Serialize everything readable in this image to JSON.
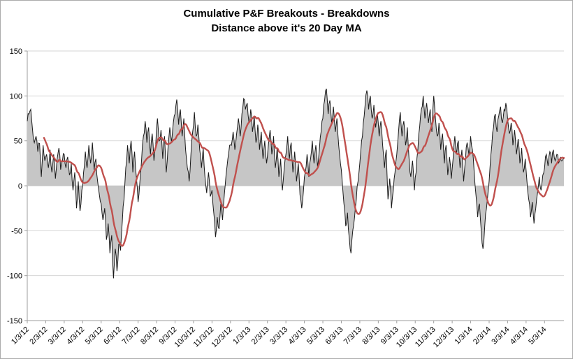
{
  "title": {
    "line1": "Cumulative P&F Breakouts - Breakdowns",
    "line2": "Distance above it's 20 Day MA"
  },
  "colors": {
    "area_fill": "#c6c6c6",
    "area_stroke": "#1a1a1a",
    "ma_line": "#c0504d",
    "gridline": "#d6d6d6",
    "axis_line": "#9e9e9e",
    "label_text": "#000000"
  },
  "chart_data": {
    "type": "area",
    "title": "Cumulative P&F Breakouts - Breakdowns",
    "subtitle": "Distance above it's 20 Day MA",
    "xlabel": "",
    "ylabel": "",
    "ylim": [
      -150,
      150
    ],
    "y_ticks": [
      150,
      100,
      50,
      0,
      -50,
      -100,
      -150
    ],
    "grid": "horizontal",
    "legend": "none",
    "total_days": 610,
    "noise_amplitude": 5,
    "x_tick_days": [
      0,
      21,
      42,
      63,
      84,
      105,
      126,
      147,
      168,
      189,
      210,
      231,
      252,
      273,
      294,
      315,
      336,
      357,
      378,
      399,
      420,
      441,
      462,
      483,
      504,
      525,
      546,
      567,
      588
    ],
    "x_tick_labels": [
      "1/3/12",
      "2/3/12",
      "3/3/12",
      "4/3/12",
      "5/3/12",
      "6/3/12",
      "7/3/12",
      "8/3/12",
      "9/3/12",
      "10/3/12",
      "11/3/12",
      "12/3/12",
      "1/3/13",
      "2/3/13",
      "3/3/13",
      "4/3/13",
      "5/3/13",
      "6/3/13",
      "7/3/13",
      "8/3/13",
      "9/3/13",
      "10/3/13",
      "11/3/13",
      "12/3/13",
      "1/3/14",
      "2/3/14",
      "3/3/14",
      "4/3/14",
      "5/3/14"
    ],
    "series": [
      {
        "name": "Cumulative P&F Breakouts - Breakdowns distance above 20 Day MA",
        "type": "area",
        "baseline": 0,
        "anchors": [
          [
            0,
            72
          ],
          [
            2,
            80
          ],
          [
            4,
            85
          ],
          [
            6,
            62
          ],
          [
            8,
            48
          ],
          [
            10,
            55
          ],
          [
            12,
            38
          ],
          [
            14,
            47
          ],
          [
            16,
            10
          ],
          [
            18,
            45
          ],
          [
            20,
            28
          ],
          [
            22,
            35
          ],
          [
            24,
            20
          ],
          [
            26,
            40
          ],
          [
            28,
            15
          ],
          [
            30,
            35
          ],
          [
            32,
            8
          ],
          [
            34,
            30
          ],
          [
            36,
            42
          ],
          [
            38,
            18
          ],
          [
            40,
            28
          ],
          [
            42,
            35
          ],
          [
            44,
            20
          ],
          [
            46,
            32
          ],
          [
            48,
            12
          ],
          [
            50,
            25
          ],
          [
            52,
            -5
          ],
          [
            54,
            15
          ],
          [
            56,
            -25
          ],
          [
            58,
            5
          ],
          [
            60,
            -28
          ],
          [
            62,
            -5
          ],
          [
            64,
            15
          ],
          [
            66,
            38
          ],
          [
            68,
            20
          ],
          [
            70,
            45
          ],
          [
            72,
            25
          ],
          [
            74,
            48
          ],
          [
            76,
            18
          ],
          [
            78,
            30
          ],
          [
            80,
            5
          ],
          [
            82,
            -10
          ],
          [
            84,
            -20
          ],
          [
            86,
            -38
          ],
          [
            88,
            -25
          ],
          [
            90,
            -60
          ],
          [
            92,
            -42
          ],
          [
            94,
            -75
          ],
          [
            96,
            -55
          ],
          [
            98,
            -103
          ],
          [
            100,
            -70
          ],
          [
            102,
            -95
          ],
          [
            104,
            -65
          ],
          [
            106,
            -72
          ],
          [
            108,
            -40
          ],
          [
            110,
            -15
          ],
          [
            112,
            20
          ],
          [
            114,
            45
          ],
          [
            116,
            25
          ],
          [
            118,
            50
          ],
          [
            120,
            15
          ],
          [
            122,
            38
          ],
          [
            124,
            10
          ],
          [
            126,
            -18
          ],
          [
            128,
            5
          ],
          [
            130,
            30
          ],
          [
            132,
            55
          ],
          [
            134,
            72
          ],
          [
            136,
            48
          ],
          [
            138,
            65
          ],
          [
            140,
            35
          ],
          [
            142,
            58
          ],
          [
            144,
            28
          ],
          [
            146,
            45
          ],
          [
            148,
            75
          ],
          [
            150,
            50
          ],
          [
            152,
            62
          ],
          [
            154,
            30
          ],
          [
            156,
            55
          ],
          [
            158,
            15
          ],
          [
            160,
            42
          ],
          [
            162,
            65
          ],
          [
            164,
            48
          ],
          [
            166,
            70
          ],
          [
            168,
            80
          ],
          [
            170,
            96
          ],
          [
            172,
            68
          ],
          [
            174,
            85
          ],
          [
            176,
            55
          ],
          [
            178,
            75
          ],
          [
            180,
            40
          ],
          [
            182,
            20
          ],
          [
            184,
            5
          ],
          [
            186,
            35
          ],
          [
            188,
            60
          ],
          [
            190,
            82
          ],
          [
            192,
            55
          ],
          [
            194,
            68
          ],
          [
            196,
            40
          ],
          [
            198,
            20
          ],
          [
            200,
            42
          ],
          [
            202,
            10
          ],
          [
            204,
            -8
          ],
          [
            206,
            15
          ],
          [
            208,
            -12
          ],
          [
            210,
            -5
          ],
          [
            212,
            -30
          ],
          [
            214,
            -57
          ],
          [
            216,
            -35
          ],
          [
            218,
            -48
          ],
          [
            220,
            -20
          ],
          [
            222,
            -38
          ],
          [
            224,
            -10
          ],
          [
            226,
            12
          ],
          [
            228,
            30
          ],
          [
            230,
            45
          ],
          [
            232,
            45
          ],
          [
            234,
            60
          ],
          [
            236,
            40
          ],
          [
            238,
            58
          ],
          [
            240,
            75
          ],
          [
            242,
            55
          ],
          [
            244,
            80
          ],
          [
            246,
            97
          ],
          [
            248,
            85
          ],
          [
            250,
            92
          ],
          [
            252,
            70
          ],
          [
            254,
            85
          ],
          [
            256,
            60
          ],
          [
            258,
            78
          ],
          [
            260,
            48
          ],
          [
            262,
            68
          ],
          [
            264,
            40
          ],
          [
            266,
            60
          ],
          [
            268,
            30
          ],
          [
            270,
            50
          ],
          [
            272,
            25
          ],
          [
            274,
            45
          ],
          [
            276,
            62
          ],
          [
            278,
            35
          ],
          [
            280,
            55
          ],
          [
            282,
            20
          ],
          [
            284,
            42
          ],
          [
            286,
            10
          ],
          [
            288,
            30
          ],
          [
            290,
            -5
          ],
          [
            292,
            18
          ],
          [
            294,
            35
          ],
          [
            296,
            55
          ],
          [
            298,
            30
          ],
          [
            300,
            48
          ],
          [
            302,
            15
          ],
          [
            304,
            38
          ],
          [
            306,
            5
          ],
          [
            308,
            25
          ],
          [
            310,
            -10
          ],
          [
            312,
            -25
          ],
          [
            314,
            -5
          ],
          [
            316,
            15
          ],
          [
            318,
            35
          ],
          [
            320,
            10
          ],
          [
            322,
            30
          ],
          [
            324,
            50
          ],
          [
            326,
            25
          ],
          [
            328,
            45
          ],
          [
            330,
            20
          ],
          [
            332,
            40
          ],
          [
            334,
            60
          ],
          [
            336,
            75
          ],
          [
            338,
            95
          ],
          [
            340,
            108
          ],
          [
            342,
            80
          ],
          [
            344,
            95
          ],
          [
            346,
            70
          ],
          [
            348,
            88
          ],
          [
            350,
            60
          ],
          [
            352,
            75
          ],
          [
            354,
            45
          ],
          [
            356,
            25
          ],
          [
            358,
            5
          ],
          [
            360,
            -20
          ],
          [
            362,
            -45
          ],
          [
            364,
            -30
          ],
          [
            366,
            -58
          ],
          [
            368,
            -75
          ],
          [
            370,
            -50
          ],
          [
            372,
            -35
          ],
          [
            374,
            -15
          ],
          [
            376,
            5
          ],
          [
            378,
            25
          ],
          [
            380,
            50
          ],
          [
            382,
            70
          ],
          [
            384,
            90
          ],
          [
            386,
            106
          ],
          [
            388,
            85
          ],
          [
            390,
            100
          ],
          [
            392,
            75
          ],
          [
            394,
            90
          ],
          [
            396,
            65
          ],
          [
            398,
            80
          ],
          [
            400,
            55
          ],
          [
            402,
            72
          ],
          [
            404,
            45
          ],
          [
            406,
            20
          ],
          [
            408,
            40
          ],
          [
            410,
            -15
          ],
          [
            412,
            8
          ],
          [
            414,
            -25
          ],
          [
            416,
            -5
          ],
          [
            418,
            15
          ],
          [
            420,
            35
          ],
          [
            422,
            60
          ],
          [
            424,
            82
          ],
          [
            426,
            55
          ],
          [
            428,
            72
          ],
          [
            430,
            45
          ],
          [
            432,
            65
          ],
          [
            434,
            30
          ],
          [
            436,
            10
          ],
          [
            438,
            28
          ],
          [
            440,
            -5
          ],
          [
            442,
            15
          ],
          [
            444,
            40
          ],
          [
            446,
            65
          ],
          [
            448,
            85
          ],
          [
            450,
            100
          ],
          [
            452,
            75
          ],
          [
            454,
            92
          ],
          [
            456,
            70
          ],
          [
            458,
            85
          ],
          [
            460,
            60
          ],
          [
            462,
            100
          ],
          [
            464,
            75
          ],
          [
            466,
            55
          ],
          [
            468,
            70
          ],
          [
            470,
            40
          ],
          [
            472,
            58
          ],
          [
            474,
            25
          ],
          [
            476,
            45
          ],
          [
            478,
            12
          ],
          [
            480,
            32
          ],
          [
            482,
            8
          ],
          [
            484,
            30
          ],
          [
            486,
            55
          ],
          [
            488,
            35
          ],
          [
            490,
            50
          ],
          [
            492,
            20
          ],
          [
            494,
            40
          ],
          [
            496,
            5
          ],
          [
            498,
            28
          ],
          [
            500,
            48
          ],
          [
            502,
            35
          ],
          [
            504,
            55
          ],
          [
            506,
            40
          ],
          [
            508,
            15
          ],
          [
            510,
            -10
          ],
          [
            512,
            -35
          ],
          [
            514,
            -20
          ],
          [
            516,
            -50
          ],
          [
            518,
            -70
          ],
          [
            520,
            -45
          ],
          [
            522,
            -25
          ],
          [
            524,
            -5
          ],
          [
            526,
            20
          ],
          [
            528,
            45
          ],
          [
            530,
            65
          ],
          [
            532,
            80
          ],
          [
            534,
            60
          ],
          [
            536,
            78
          ],
          [
            538,
            88
          ],
          [
            540,
            70
          ],
          [
            542,
            85
          ],
          [
            544,
            92
          ],
          [
            546,
            75
          ],
          [
            548,
            58
          ],
          [
            550,
            70
          ],
          [
            552,
            45
          ],
          [
            554,
            62
          ],
          [
            556,
            35
          ],
          [
            558,
            52
          ],
          [
            560,
            25
          ],
          [
            562,
            42
          ],
          [
            564,
            15
          ],
          [
            566,
            30
          ],
          [
            568,
            5
          ],
          [
            570,
            -15
          ],
          [
            572,
            -35
          ],
          [
            574,
            -18
          ],
          [
            576,
            -42
          ],
          [
            578,
            -25
          ],
          [
            580,
            -8
          ],
          [
            582,
            10
          ],
          [
            584,
            -5
          ],
          [
            586,
            12
          ],
          [
            588,
            20
          ],
          [
            590,
            35
          ],
          [
            592,
            22
          ],
          [
            594,
            38
          ],
          [
            596,
            25
          ],
          [
            598,
            40
          ],
          [
            600,
            28
          ],
          [
            602,
            35
          ],
          [
            604,
            25
          ],
          [
            606,
            32
          ],
          [
            608,
            28
          ],
          [
            610,
            30
          ]
        ]
      },
      {
        "name": "20 Day MA",
        "type": "line",
        "derived": "sma",
        "window": 20
      }
    ]
  }
}
